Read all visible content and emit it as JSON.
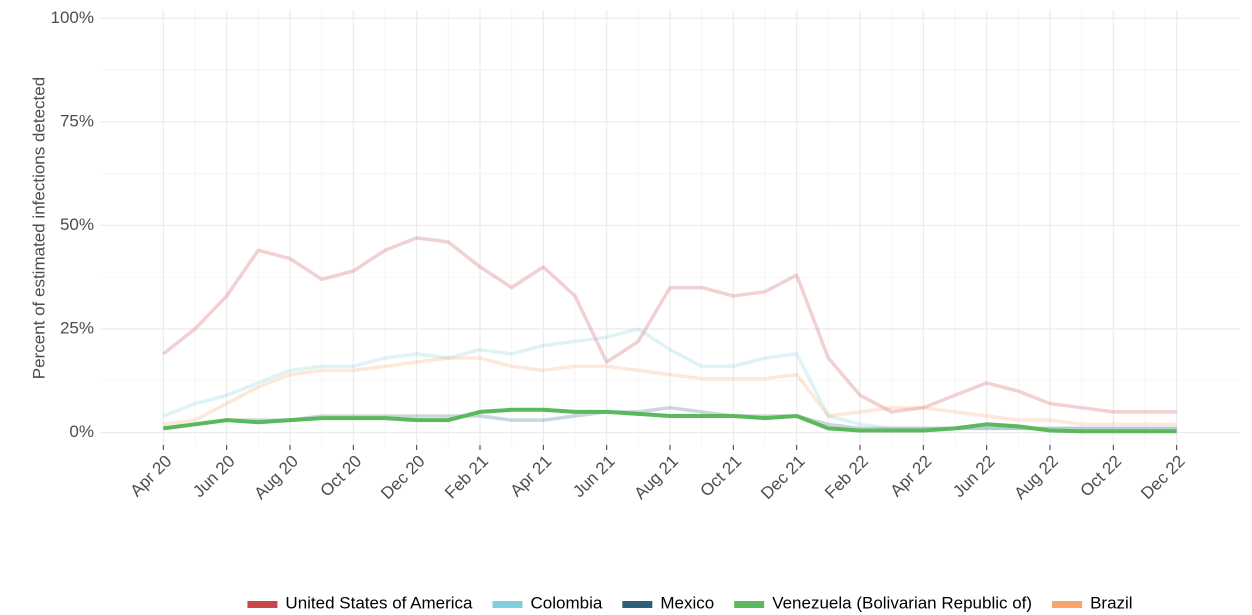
{
  "chart_data": {
    "type": "line",
    "y_label": "Percent of estimated infections detected",
    "x": [
      "2020-04",
      "2020-05",
      "2020-06",
      "2020-07",
      "2020-08",
      "2020-09",
      "2020-10",
      "2020-11",
      "2020-12",
      "2021-01",
      "2021-02",
      "2021-03",
      "2021-04",
      "2021-05",
      "2021-06",
      "2021-07",
      "2021-08",
      "2021-09",
      "2021-10",
      "2021-11",
      "2021-12",
      "2022-01",
      "2022-02",
      "2022-03",
      "2022-04",
      "2022-05",
      "2022-06",
      "2022-07",
      "2022-08",
      "2022-09",
      "2022-10",
      "2022-11",
      "2022-12"
    ],
    "series": [
      {
        "name": "United States of America",
        "color": "#c8464a",
        "values": [
          19,
          25,
          33,
          44,
          42,
          37,
          39,
          44,
          47,
          46,
          40,
          35,
          40,
          33,
          17,
          22,
          35,
          35,
          33,
          34,
          38,
          18,
          9,
          5,
          6,
          9,
          12,
          10,
          7,
          6,
          5,
          5,
          5
        ]
      },
      {
        "name": "Colombia",
        "color": "#7fd0dc",
        "values": [
          4,
          7,
          9,
          12,
          15,
          16,
          16,
          18,
          19,
          18,
          20,
          19,
          21,
          22,
          23,
          25,
          20,
          16,
          16,
          18,
          19,
          4,
          2,
          1,
          1,
          1,
          1,
          1,
          1,
          1,
          1,
          1,
          1
        ]
      },
      {
        "name": "Mexico",
        "color": "#2b5f7a",
        "values": [
          1,
          2,
          3,
          3,
          3,
          4,
          4,
          4,
          4,
          4,
          4,
          3,
          3,
          4,
          5,
          5,
          6,
          5,
          4,
          4,
          4,
          2,
          1,
          1,
          1,
          1,
          1,
          1,
          1,
          1,
          1,
          1,
          1
        ]
      },
      {
        "name": "Venezuela (Bolivarian Republic of)",
        "color": "#5cb85c",
        "values": [
          1,
          2,
          3,
          2.5,
          3,
          3.5,
          3.5,
          3.5,
          3,
          3,
          5,
          5.5,
          5.5,
          5,
          5,
          4.5,
          4,
          4,
          4,
          3.5,
          4,
          1,
          0.5,
          0.5,
          0.5,
          1,
          2,
          1.5,
          0.5,
          0.3,
          0.3,
          0.3,
          0.3
        ]
      },
      {
        "name": "Brazil",
        "color": "#f9a56a",
        "values": [
          2,
          3,
          7,
          11,
          14,
          15,
          15,
          16,
          17,
          18,
          18,
          16,
          15,
          16,
          16,
          15,
          14,
          13,
          13,
          13,
          14,
          4,
          5,
          6,
          6,
          5,
          4,
          3,
          3,
          2,
          2,
          2,
          2
        ]
      }
    ],
    "highlight": "Venezuela (Bolivarian Republic of)",
    "xlim": [
      "2020-02",
      "2023-02"
    ],
    "xticks": [
      {
        "value": "2020-04",
        "label": "Apr 20"
      },
      {
        "value": "2020-06",
        "label": "Jun 20"
      },
      {
        "value": "2020-08",
        "label": "Aug 20"
      },
      {
        "value": "2020-10",
        "label": "Oct 20"
      },
      {
        "value": "2020-12",
        "label": "Dec 20"
      },
      {
        "value": "2021-02",
        "label": "Feb 21"
      },
      {
        "value": "2021-04",
        "label": "Apr 21"
      },
      {
        "value": "2021-06",
        "label": "Jun 21"
      },
      {
        "value": "2021-08",
        "label": "Aug 21"
      },
      {
        "value": "2021-10",
        "label": "Oct 21"
      },
      {
        "value": "2021-12",
        "label": "Dec 21"
      },
      {
        "value": "2022-02",
        "label": "Feb 22"
      },
      {
        "value": "2022-04",
        "label": "Apr 22"
      },
      {
        "value": "2022-06",
        "label": "Jun 22"
      },
      {
        "value": "2022-08",
        "label": "Aug 22"
      },
      {
        "value": "2022-10",
        "label": "Oct 22"
      },
      {
        "value": "2022-12",
        "label": "Dec 22"
      }
    ],
    "ylim": [
      -3,
      102
    ],
    "yticks": [
      {
        "value": 0,
        "label": "0%"
      },
      {
        "value": 25,
        "label": "25%"
      },
      {
        "value": 50,
        "label": "50%"
      },
      {
        "value": 75,
        "label": "75%"
      },
      {
        "value": 100,
        "label": "100%"
      }
    ],
    "grid": true,
    "legend": "bottom"
  }
}
